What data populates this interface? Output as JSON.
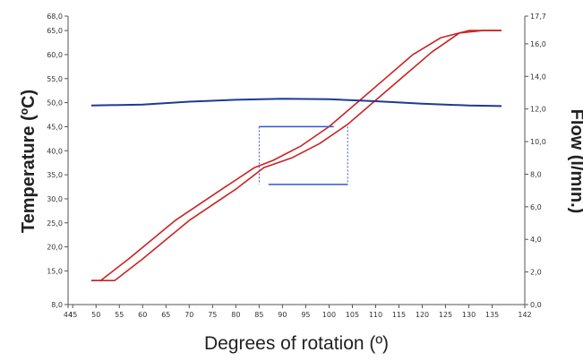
{
  "chart_data": {
    "type": "line",
    "title": "",
    "xlabel": "Degrees of rotation (º)",
    "ylabel_left": "Temperature (ºC)",
    "ylabel_right": "Flow (l/min.)",
    "xlim": [
      44,
      142
    ],
    "ylim_left": [
      8.0,
      68.0
    ],
    "ylim_right": [
      0.0,
      17.7
    ],
    "x_ticks": [
      "44",
      "45",
      "50",
      "55",
      "60",
      "65",
      "70",
      "75",
      "80",
      "85",
      "90",
      "95",
      "100",
      "105",
      "110",
      "115",
      "120",
      "125",
      "130",
      "135",
      "142"
    ],
    "y_left_ticks": [
      "8,0",
      "15,0",
      "20,0",
      "25,0",
      "30,0",
      "35,0",
      "40,0",
      "45,0",
      "50,0",
      "55,0",
      "60,0",
      "65,0",
      "68,0"
    ],
    "y_right_ticks": [
      "0,0",
      "2,0",
      "4,0",
      "6,0",
      "8,0",
      "10,0",
      "12,0",
      "14,0",
      "16,0",
      "17,7"
    ],
    "grid": false,
    "legend": "none",
    "series": [
      {
        "axis": "left",
        "color": "#cc2222",
        "x": [
          49,
          54,
          60,
          70,
          80,
          86,
          92,
          98,
          104,
          110,
          116,
          122,
          128,
          133,
          137
        ],
        "y": [
          13.0,
          13.0,
          17.5,
          25.5,
          32.0,
          36.5,
          38.5,
          41.5,
          45.5,
          50.5,
          55.5,
          60.5,
          64.5,
          65.0,
          65.0
        ]
      },
      {
        "axis": "left",
        "color": "#cc2222",
        "x": [
          49,
          51,
          57,
          67,
          77,
          84,
          88,
          94,
          100,
          106,
          112,
          118,
          124,
          130,
          137
        ],
        "y": [
          13.0,
          13.0,
          17.5,
          25.5,
          32.0,
          36.5,
          38.0,
          41.0,
          45.0,
          50.0,
          55.0,
          60.0,
          63.5,
          65.0,
          65.0
        ]
      },
      {
        "axis": "left",
        "color": "#1f3a93",
        "x": [
          49,
          60,
          70,
          80,
          90,
          100,
          110,
          120,
          130,
          137
        ],
        "y": [
          49.4,
          49.6,
          50.2,
          50.6,
          50.8,
          50.7,
          50.3,
          49.8,
          49.4,
          49.3
        ]
      }
    ],
    "annotations": [
      {
        "type": "error-box",
        "color": "#3355cc",
        "x_range": [
          85,
          104
        ],
        "top_x_range": [
          85,
          101
        ],
        "bottom_x_range": [
          87,
          104
        ],
        "y_range": [
          33.0,
          45.0
        ]
      }
    ]
  }
}
